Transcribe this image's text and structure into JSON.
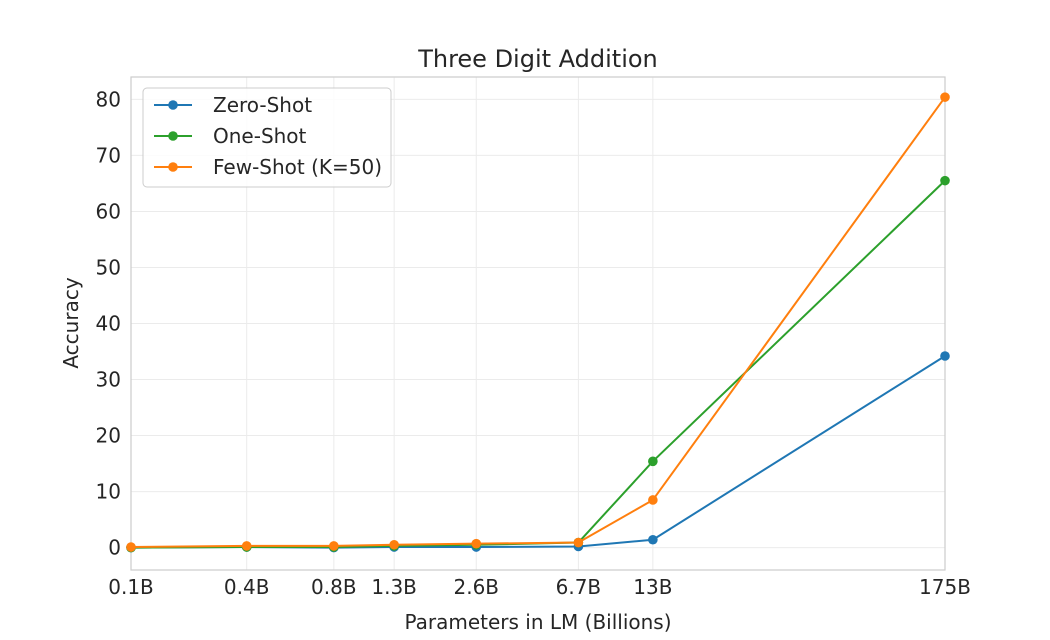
{
  "chart_data": {
    "type": "line",
    "title": "Three Digit Addition",
    "xlabel": "Parameters in LM (Billions)",
    "ylabel": "Accuracy",
    "x_scale": "log",
    "categories": [
      "0.1B",
      "0.4B",
      "0.8B",
      "1.3B",
      "2.6B",
      "6.7B",
      "13B",
      "175B"
    ],
    "x": [
      0.125,
      0.35,
      0.76,
      1.3,
      2.7,
      6.7,
      13,
      175
    ],
    "ylim": [
      -4,
      84
    ],
    "yticks": [
      0,
      10,
      20,
      30,
      40,
      50,
      60,
      70,
      80
    ],
    "grid": true,
    "legend_position": "top-left",
    "series": [
      {
        "name": "Zero-Shot",
        "color": "#1f77b4",
        "values": [
          0.0,
          0.1,
          0.0,
          0.1,
          0.1,
          0.2,
          1.4,
          34.2
        ]
      },
      {
        "name": "One-Shot",
        "color": "#2ca02c",
        "values": [
          0.0,
          0.1,
          0.1,
          0.3,
          0.5,
          0.9,
          15.4,
          65.5
        ]
      },
      {
        "name": "Few-Shot (K=50)",
        "color": "#ff7f0e",
        "values": [
          0.1,
          0.3,
          0.3,
          0.5,
          0.7,
          0.9,
          8.5,
          80.4
        ]
      }
    ]
  }
}
